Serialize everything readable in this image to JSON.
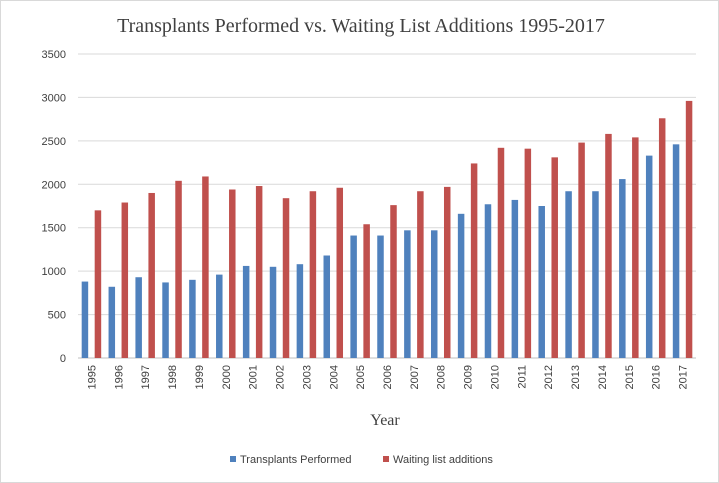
{
  "chart_data": {
    "type": "bar",
    "title": "Transplants Performed vs. Waiting List Additions 1995-2017",
    "xlabel": "Year",
    "ylabel": "",
    "ylim": [
      0,
      3500
    ],
    "y_ticks": [
      0,
      500,
      1000,
      1500,
      2000,
      2500,
      3000,
      3500
    ],
    "grid": true,
    "legend_position": "bottom",
    "categories": [
      "1995",
      "1996",
      "1997",
      "1998",
      "1999",
      "2000",
      "2001",
      "2002",
      "2003",
      "2004",
      "2005",
      "2006",
      "2007",
      "2008",
      "2009",
      "2010",
      "2011",
      "2012",
      "2013",
      "2014",
      "2015",
      "2016",
      "2017"
    ],
    "series": [
      {
        "name": "Transplants Performed",
        "color": "#4f81bd",
        "values": [
          880,
          820,
          930,
          870,
          900,
          960,
          1060,
          1050,
          1080,
          1180,
          1410,
          1410,
          1470,
          1470,
          1660,
          1770,
          1820,
          1750,
          1920,
          1920,
          2060,
          2330,
          2460
        ]
      },
      {
        "name": "Waiting list additions",
        "color": "#c0504d",
        "values": [
          1700,
          1790,
          1900,
          2040,
          2090,
          1940,
          1980,
          1840,
          1920,
          1960,
          1540,
          1760,
          1920,
          1970,
          2240,
          2420,
          2410,
          2310,
          2480,
          2580,
          2540,
          2760,
          2960
        ]
      }
    ]
  }
}
